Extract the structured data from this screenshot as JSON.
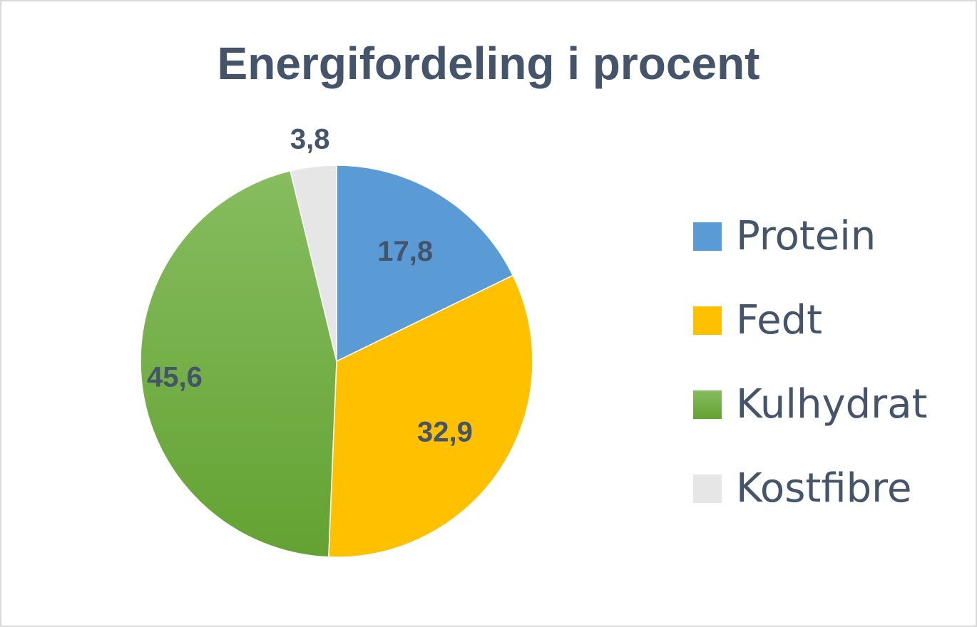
{
  "chart_data": {
    "type": "pie",
    "title": "Energifordeling i procent",
    "slices": [
      {
        "name": "Protein",
        "value": 17.8,
        "label": "17,8",
        "color": "#5b9bd5"
      },
      {
        "name": "Fedt",
        "value": 32.9,
        "label": "32,9",
        "color": "#ffc000"
      },
      {
        "name": "Kulhydrat",
        "value": 45.6,
        "label": "45,6",
        "color": "#70ad47"
      },
      {
        "name": "Kostfibre",
        "value": 3.8,
        "label": "3,8",
        "color": "#e7e6e6"
      }
    ],
    "legend_position": "right",
    "label_color": "#44546a"
  }
}
